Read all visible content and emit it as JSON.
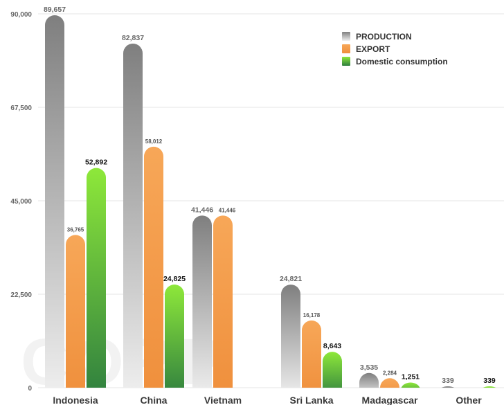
{
  "watermark": "CORP",
  "chart_data": {
    "type": "bar",
    "title": "",
    "xlabel": "",
    "ylabel": "",
    "categories": [
      "Indonesia",
      "China",
      "Vietnam",
      "Sri Lanka",
      "Madagascar",
      "Other"
    ],
    "ylim": [
      0,
      90000
    ],
    "yticks": [
      {
        "value": 0,
        "label": "0"
      },
      {
        "value": 22500,
        "label": "22,500"
      },
      {
        "value": 45000,
        "label": "45,000"
      },
      {
        "value": 67500,
        "label": "67,500"
      },
      {
        "value": 90000,
        "label": "90,000"
      }
    ],
    "grid": true,
    "legend_position": "top-right",
    "series": [
      {
        "name": "PRODUCTION",
        "color": "#8c8c8c",
        "values": [
          89657,
          82837,
          41446,
          24821,
          3535,
          339
        ],
        "labels": [
          "89,657",
          "82,837",
          "41,446",
          "24,821",
          "3,535",
          "339"
        ]
      },
      {
        "name": "EXPORT",
        "color": "#f5a35c",
        "values": [
          36765,
          58012,
          41446,
          16178,
          2284,
          null
        ],
        "labels": [
          "36,765",
          "58,012",
          "41,446",
          "16,178",
          "2,284",
          null
        ]
      },
      {
        "name": "Domestic consumption",
        "color": "#4cae44",
        "values": [
          52892,
          24825,
          null,
          8643,
          1251,
          339
        ],
        "labels": [
          "52,892",
          "24,825",
          null,
          "8,643",
          "1,251",
          "339"
        ]
      }
    ]
  }
}
